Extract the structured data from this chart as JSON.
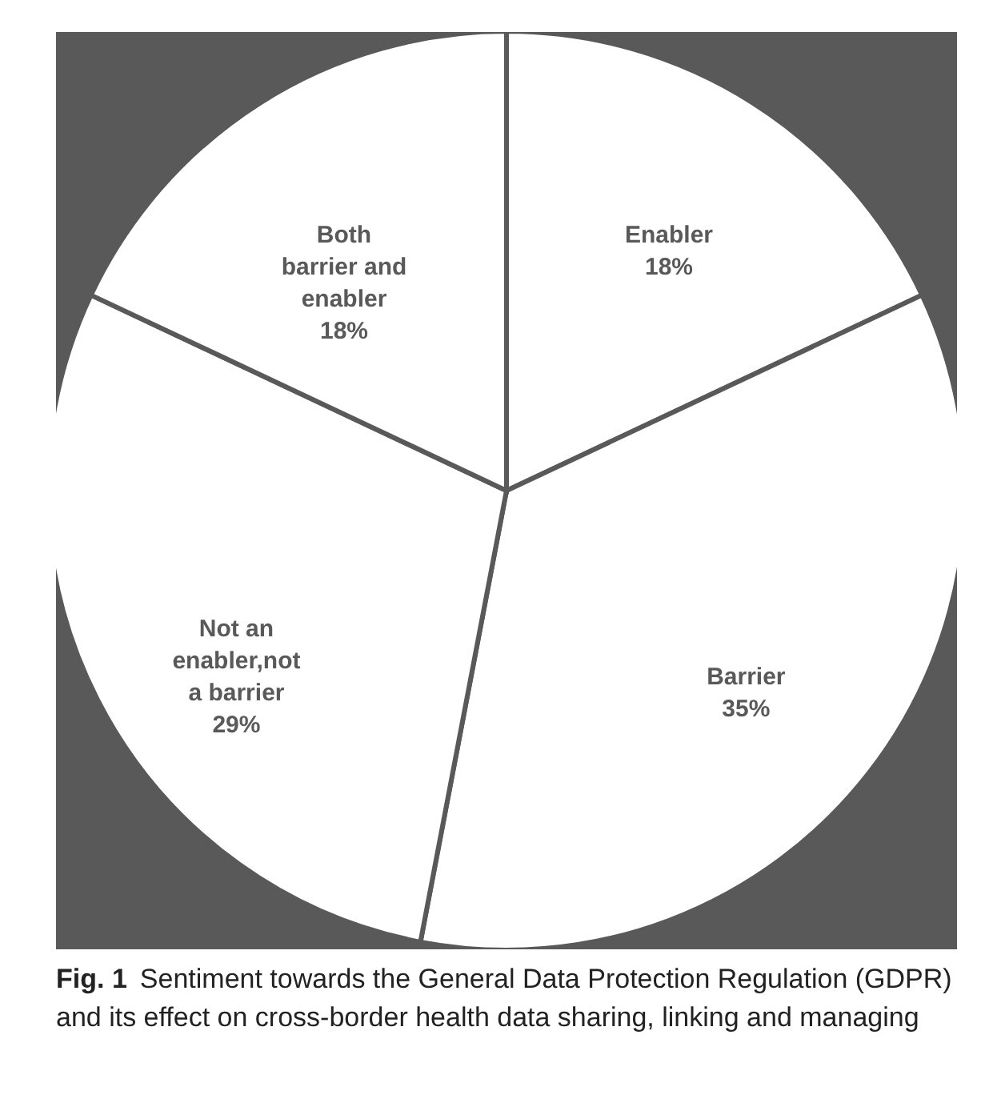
{
  "chart_data": {
    "type": "pie",
    "categories": [
      "Enabler",
      "Barrier",
      "Not an enabler,not a barrier",
      "Both barrier and enabler"
    ],
    "values": [
      18,
      35,
      29,
      18
    ],
    "value_labels": [
      "18%",
      "35%",
      "29%",
      "18%"
    ],
    "colors": [
      "#ffffff",
      "#ffffff",
      "#ffffff",
      "#ffffff"
    ],
    "annotations": [
      "Fig. 1",
      "Sentiment towards the General Data Protection Regulation (GDPR) and its effect on cross-border health data sharing, linking and managing"
    ]
  }
}
